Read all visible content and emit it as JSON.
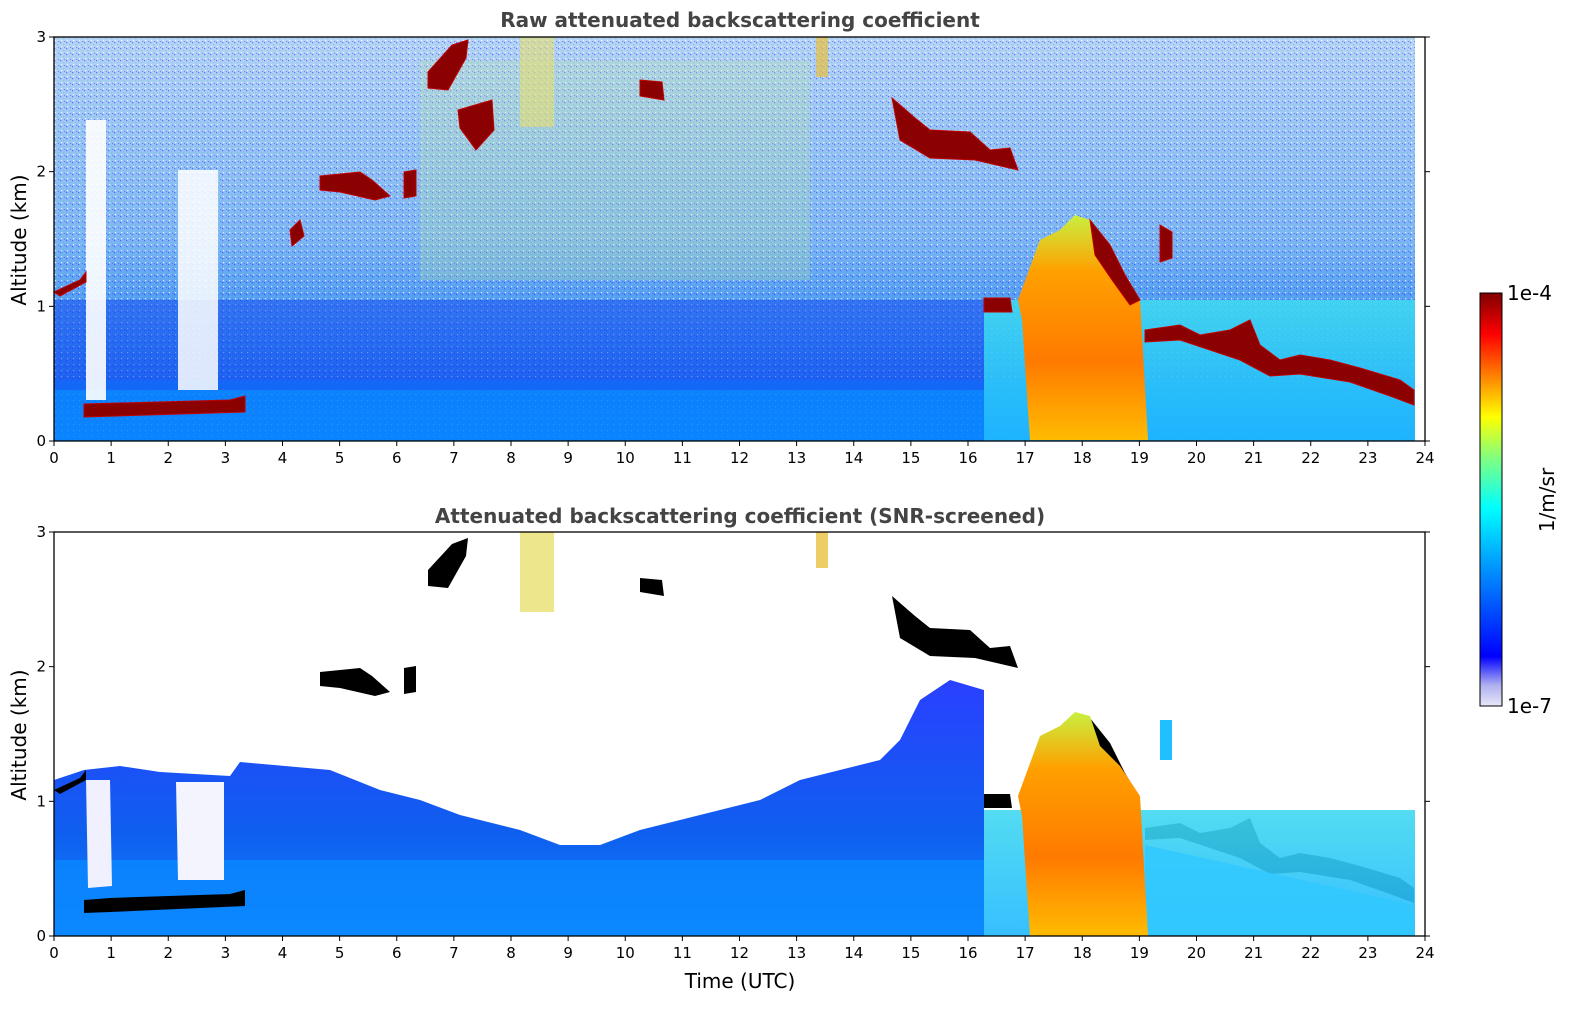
{
  "chart_data": [
    {
      "type": "heatmap",
      "title": "Raw attenuated backscattering coefficient",
      "xlabel": "",
      "ylabel": "Altitude (km)",
      "xlim": [
        0,
        24
      ],
      "ylim": [
        0,
        3
      ],
      "x_ticks": [
        "0",
        "1",
        "2",
        "3",
        "4",
        "5",
        "6",
        "7",
        "8",
        "9",
        "10",
        "11",
        "12",
        "13",
        "14",
        "15",
        "16",
        "17",
        "18",
        "19",
        "20",
        "21",
        "22",
        "23",
        "24"
      ],
      "y_ticks": [
        "0",
        "1",
        "2",
        "3"
      ],
      "grid": false,
      "cloud_layers": [
        {
          "start": 0.55,
          "end": 3.2,
          "base_km": 0.24,
          "top_km": 0.3
        },
        {
          "start": 0.0,
          "end": 0.5,
          "base_km": 1.08,
          "top_km": 1.2
        },
        {
          "start": 4.6,
          "end": 6.4,
          "base_km": 1.85,
          "top_km": 2.0
        },
        {
          "start": 6.5,
          "end": 7.5,
          "base_km": 2.6,
          "top_km": 2.9
        },
        {
          "start": 10.2,
          "end": 10.7,
          "base_km": 2.55,
          "top_km": 2.65
        },
        {
          "start": 14.6,
          "end": 16.7,
          "base_km": 2.1,
          "top_km": 2.5
        },
        {
          "start": 16.2,
          "end": 24.0,
          "base_km": 0.35,
          "top_km": 1.6
        }
      ]
    },
    {
      "type": "heatmap",
      "title": "Attenuated backscattering coefficient (SNR-screened)",
      "xlabel": "Time (UTC)",
      "ylabel": "Altitude (km)",
      "xlim": [
        0,
        24
      ],
      "ylim": [
        0,
        3
      ],
      "x_ticks": [
        "0",
        "1",
        "2",
        "3",
        "4",
        "5",
        "6",
        "7",
        "8",
        "9",
        "10",
        "11",
        "12",
        "13",
        "14",
        "15",
        "16",
        "17",
        "18",
        "19",
        "20",
        "21",
        "22",
        "23",
        "24"
      ],
      "y_ticks": [
        "0",
        "1",
        "2",
        "3"
      ],
      "grid": false
    }
  ],
  "colorbar": {
    "label": "1/m/sr",
    "max_label": "1e-4",
    "min_label": "1e-7",
    "scale": "log",
    "colormap": "jet",
    "colors": [
      "#e8e8f8",
      "#0000ff",
      "#00a0ff",
      "#00ffff",
      "#80ff80",
      "#ffff00",
      "#ff8000",
      "#ff0000",
      "#800000"
    ]
  }
}
